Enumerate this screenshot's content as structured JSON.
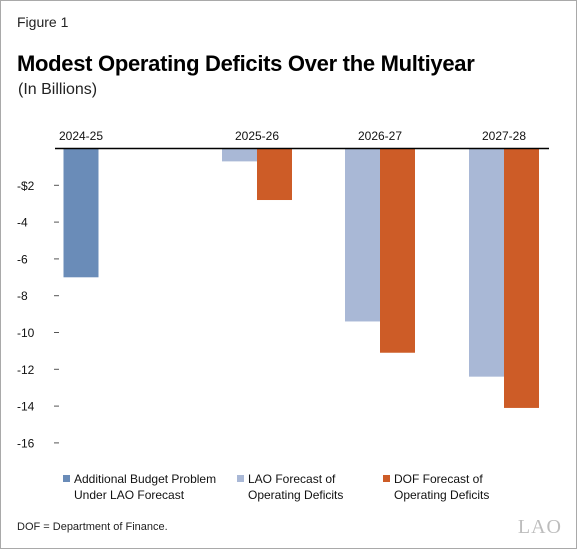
{
  "figure_label": "Figure 1",
  "title": "Modest Operating Deficits Over the Multiyear",
  "subtitle": "(In Billions)",
  "footnote": "DOF = Department of Finance.",
  "logo_text": "LAO",
  "chart_data": {
    "type": "bar",
    "categories": [
      "2024-25",
      "2025-26",
      "2026-27",
      "2027-28"
    ],
    "series": [
      {
        "name": "Additional Budget Problem Under LAO Forecast",
        "values": [
          -7.0,
          null,
          null,
          null
        ],
        "color": "#6a8cb8"
      },
      {
        "name": "LAO Forecast of Operating Deficits",
        "values": [
          null,
          -0.7,
          -9.4,
          -12.4
        ],
        "color": "#a9b8d6"
      },
      {
        "name": "DOF Forecast of Operating Deficits",
        "values": [
          null,
          -2.8,
          -11.1,
          -14.1
        ],
        "color": "#cd5c27"
      }
    ],
    "y_ticks": [
      "-$2",
      "-4",
      "-6",
      "-8",
      "-10",
      "-12",
      "-14",
      "-16"
    ],
    "y_tick_values": [
      -2,
      -4,
      -6,
      -8,
      -10,
      -12,
      -14,
      -16
    ],
    "ylim": [
      -16,
      0
    ],
    "xlabel": "",
    "ylabel": "",
    "x_axis_position": "top",
    "grid": false,
    "legend_position": "bottom"
  },
  "legend": [
    {
      "line1": "Additional Budget Problem",
      "line2": "Under LAO Forecast",
      "color": "#6a8cb8"
    },
    {
      "line1": "LAO Forecast of",
      "line2": "Operating Deficits",
      "color": "#a9b8d6"
    },
    {
      "line1": "DOF Forecast of",
      "line2": "Operating Deficits",
      "color": "#cd5c27"
    }
  ],
  "colors": {
    "axis": "#000000",
    "tick": "#555555",
    "border": "#a9a9a9",
    "logo": "#bdbdbd"
  }
}
